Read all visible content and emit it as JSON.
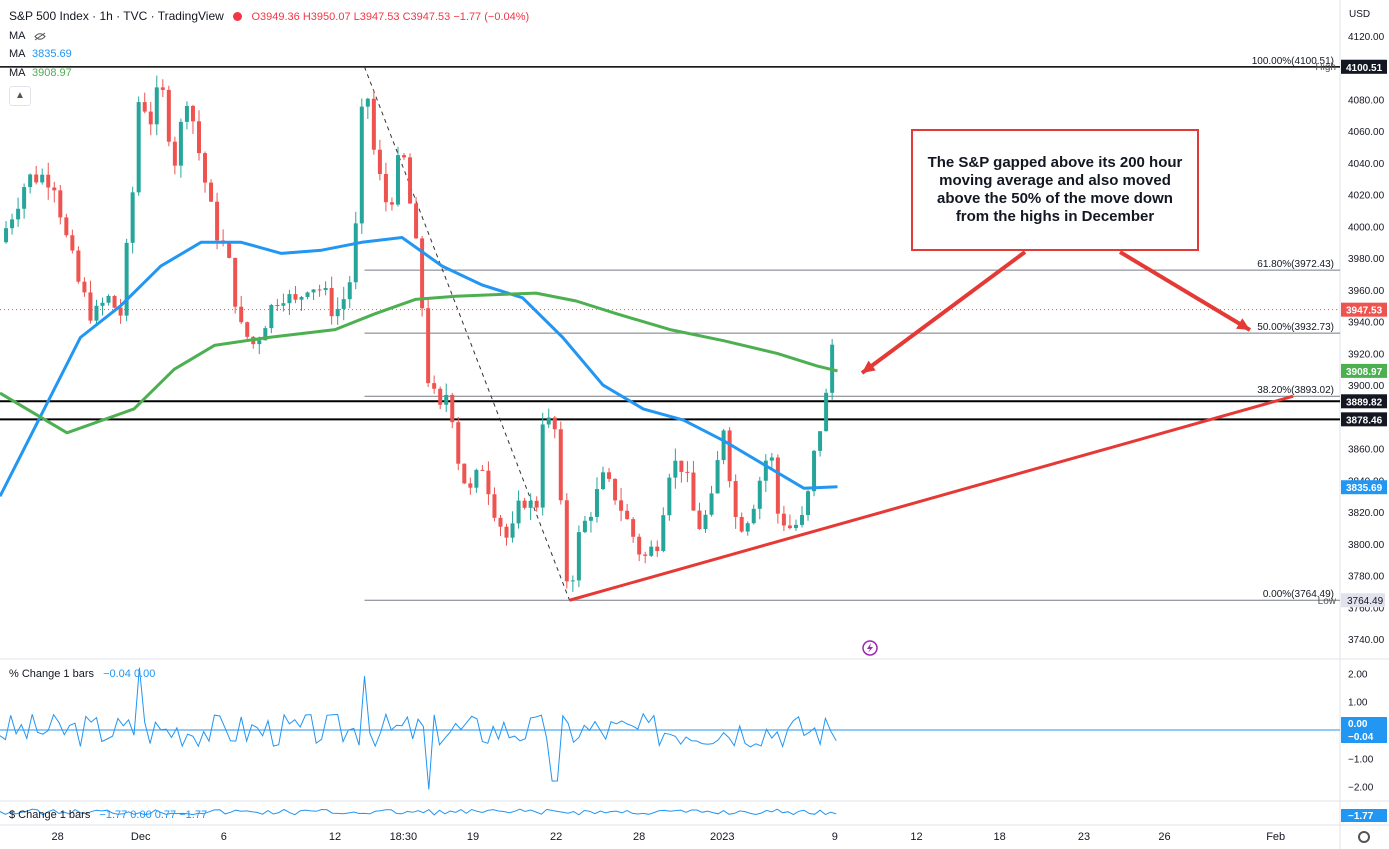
{
  "header": {
    "title": "S&P 500 Index · 1h · TVC · TradingView",
    "ohlc": {
      "O": "3949.36",
      "H": "3950.07",
      "L": "3947.53",
      "C": "3947.53",
      "chg": "−1.77 (−0.04%)"
    },
    "ma_blank_label": "MA",
    "ma1_label": "MA",
    "ma1_value": "3835.69",
    "ma2_label": "MA",
    "ma2_value": "3908.97",
    "currency": "USD",
    "collapse_icon": "chevron-up-icon"
  },
  "colors": {
    "up": "#26a69a",
    "down": "#ef5350",
    "ma_fast": "#2196f3",
    "ma_slow": "#4caf50",
    "annotation": "#e53935",
    "level": "#000000",
    "fib": "#787b86"
  },
  "annotation": {
    "text": "The S&P gapped above its 200 hour moving average and also moved above the 50% of the move down from the highs in December"
  },
  "chart_data": [
    {
      "type": "candlestick",
      "title": "S&P 500 Index · 1h · TVC",
      "currency": "USD",
      "ylim": [
        3730,
        4130
      ],
      "y_ticks": [
        3740,
        3760,
        3780,
        3800,
        3820,
        3840,
        3860,
        3880,
        3900,
        3920,
        3940,
        3960,
        3980,
        4000,
        4020,
        4040,
        4060,
        4080,
        4100,
        4120
      ],
      "x_ticks": [
        {
          "label": "28",
          "pos": 0.043
        },
        {
          "label": "Dec",
          "pos": 0.105
        },
        {
          "label": "6",
          "pos": 0.167
        },
        {
          "label": "12",
          "pos": 0.25
        },
        {
          "label": "18:30",
          "pos": 0.301
        },
        {
          "label": "19",
          "pos": 0.353
        },
        {
          "label": "22",
          "pos": 0.415
        },
        {
          "label": "28",
          "pos": 0.477
        },
        {
          "label": "2023",
          "pos": 0.539
        },
        {
          "label": "9",
          "pos": 0.623
        },
        {
          "label": "12",
          "pos": 0.684
        },
        {
          "label": "18",
          "pos": 0.746
        },
        {
          "label": "23",
          "pos": 0.809
        },
        {
          "label": "26",
          "pos": 0.869
        },
        {
          "label": "Feb",
          "pos": 0.952
        }
      ],
      "price_path": [
        [
          0,
          3990
        ],
        [
          0.01,
          4010
        ],
        [
          0.02,
          4030
        ],
        [
          0.03,
          4032
        ],
        [
          0.04,
          4030
        ],
        [
          0.05,
          3990
        ],
        [
          0.06,
          3960
        ],
        [
          0.07,
          3942
        ],
        [
          0.08,
          3955
        ],
        [
          0.09,
          3945
        ],
        [
          0.1,
          4030
        ],
        [
          0.105,
          4100
        ],
        [
          0.11,
          4060
        ],
        [
          0.12,
          4090
        ],
        [
          0.13,
          4040
        ],
        [
          0.14,
          4085
        ],
        [
          0.15,
          4040
        ],
        [
          0.16,
          4000
        ],
        [
          0.17,
          3980
        ],
        [
          0.18,
          3935
        ],
        [
          0.19,
          3925
        ],
        [
          0.2,
          3945
        ],
        [
          0.21,
          3960
        ],
        [
          0.22,
          3950
        ],
        [
          0.23,
          3965
        ],
        [
          0.24,
          3960
        ],
        [
          0.25,
          3945
        ],
        [
          0.26,
          3960
        ],
        [
          0.265,
          3990
        ],
        [
          0.272,
          4100
        ],
        [
          0.28,
          4040
        ],
        [
          0.29,
          4010
        ],
        [
          0.3,
          4050
        ],
        [
          0.31,
          3990
        ],
        [
          0.315,
          3950
        ],
        [
          0.32,
          3900
        ],
        [
          0.33,
          3880
        ],
        [
          0.335,
          3905
        ],
        [
          0.34,
          3860
        ],
        [
          0.35,
          3830
        ],
        [
          0.36,
          3850
        ],
        [
          0.37,
          3820
        ],
        [
          0.38,
          3800
        ],
        [
          0.39,
          3830
        ],
        [
          0.4,
          3820
        ],
        [
          0.405,
          3880
        ],
        [
          0.41,
          3875
        ],
        [
          0.415,
          3870
        ],
        [
          0.42,
          3800
        ],
        [
          0.425,
          3764.49
        ],
        [
          0.43,
          3800
        ],
        [
          0.44,
          3820
        ],
        [
          0.45,
          3840
        ],
        [
          0.46,
          3830
        ],
        [
          0.47,
          3810
        ],
        [
          0.48,
          3790
        ],
        [
          0.49,
          3800
        ],
        [
          0.5,
          3850
        ],
        [
          0.51,
          3850
        ],
        [
          0.52,
          3810
        ],
        [
          0.53,
          3820
        ],
        [
          0.54,
          3875
        ],
        [
          0.55,
          3810
        ],
        [
          0.56,
          3820
        ],
        [
          0.57,
          3850
        ],
        [
          0.575,
          3860
        ],
        [
          0.58,
          3820
        ],
        [
          0.59,
          3810
        ],
        [
          0.6,
          3815
        ],
        [
          0.605,
          3840
        ],
        [
          0.61,
          3870
        ],
        [
          0.615,
          3880
        ],
        [
          0.62,
          3920
        ],
        [
          0.625,
          3947.53
        ]
      ],
      "series": [
        {
          "name": "MA",
          "value": "3835.69",
          "path": [
            [
              0,
              3830
            ],
            [
              0.03,
              3880
            ],
            [
              0.06,
              3930
            ],
            [
              0.09,
              3950
            ],
            [
              0.12,
              3975
            ],
            [
              0.15,
              3990
            ],
            [
              0.18,
              3990
            ],
            [
              0.21,
              3983
            ],
            [
              0.24,
              3985
            ],
            [
              0.27,
              3990
            ],
            [
              0.3,
              3993
            ],
            [
              0.33,
              3975
            ],
            [
              0.36,
              3963
            ],
            [
              0.39,
              3955
            ],
            [
              0.42,
              3930
            ],
            [
              0.45,
              3900
            ],
            [
              0.48,
              3885
            ],
            [
              0.51,
              3878
            ],
            [
              0.54,
              3865
            ],
            [
              0.57,
              3850
            ],
            [
              0.6,
              3835
            ],
            [
              0.625,
              3836
            ]
          ]
        },
        {
          "name": "MA",
          "value": "3908.97",
          "path": [
            [
              0,
              3895
            ],
            [
              0.05,
              3870
            ],
            [
              0.1,
              3885
            ],
            [
              0.13,
              3910
            ],
            [
              0.16,
              3925
            ],
            [
              0.2,
              3930
            ],
            [
              0.25,
              3935
            ],
            [
              0.28,
              3945
            ],
            [
              0.31,
              3954
            ],
            [
              0.34,
              3956
            ],
            [
              0.37,
              3957
            ],
            [
              0.4,
              3958
            ],
            [
              0.43,
              3953
            ],
            [
              0.46,
              3945
            ],
            [
              0.5,
              3935
            ],
            [
              0.54,
              3928
            ],
            [
              0.58,
              3920
            ],
            [
              0.61,
              3912
            ],
            [
              0.625,
              3908.97
            ]
          ]
        }
      ],
      "fib_levels": [
        {
          "label": "100.00%(4100.51)",
          "value": 4100.51
        },
        {
          "label": "61.80%(3972.43)",
          "value": 3972.43
        },
        {
          "label": "50.00%(3932.73)",
          "value": 3932.73
        },
        {
          "label": "38.20%(3893.02)",
          "value": 3893.02
        },
        {
          "label": "0.00%(3764.49)",
          "value": 3764.49
        }
      ],
      "horizontal_levels": [
        3889.82,
        3878.46
      ],
      "price_badges": [
        {
          "label": "High",
          "value": "4100.96"
        },
        {
          "value": "4100.51",
          "style": "dark"
        },
        {
          "value": "3947.53",
          "style": "red"
        },
        {
          "value": "3908.97",
          "style": "green"
        },
        {
          "value": "3889.82",
          "style": "dark"
        },
        {
          "value": "3878.46",
          "style": "dark"
        },
        {
          "value": "3835.69",
          "style": "blue"
        },
        {
          "label": "Low",
          "value": "3764.49"
        }
      ],
      "trendline": {
        "from": [
          0.425,
          3764.49
        ],
        "to": [
          0.965,
          3893
        ]
      },
      "dashed_line": {
        "from": [
          0.272,
          4100.51
        ],
        "to": [
          0.425,
          3764.49
        ]
      }
    },
    {
      "type": "line",
      "title": "% Change 1 bars",
      "legend_values": "−0.04 0.00",
      "ylim": [
        -2.4,
        2.4
      ],
      "y_ticks": [
        "2.00",
        "1.00",
        "−1.00",
        "−2.00"
      ],
      "badges": [
        "0.00",
        "−0.04"
      ]
    },
    {
      "type": "line",
      "title": "$ Change 1 bars",
      "legend_values": "−1.77 0.00 0.77 −1.77",
      "badges": [
        "−1.77",
        "−1.77"
      ]
    }
  ]
}
